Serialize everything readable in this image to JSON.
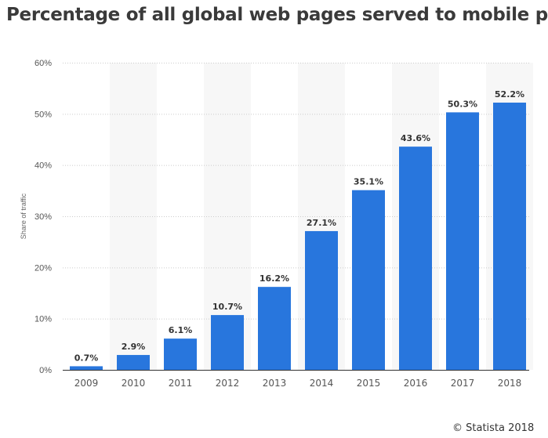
{
  "title": "Percentage of all global web pages served to mobile p",
  "credit": "© Statista 2018",
  "chart_data": {
    "type": "bar",
    "title": "Percentage of all global web pages served to mobile p",
    "ylabel": "Share of traffic",
    "xlabel": "",
    "categories": [
      "2009",
      "2010",
      "2011",
      "2012",
      "2013",
      "2014",
      "2015",
      "2016",
      "2017",
      "2018"
    ],
    "values": [
      0.7,
      2.9,
      6.1,
      10.7,
      16.2,
      27.1,
      35.1,
      43.6,
      50.3,
      52.2
    ],
    "data_labels": [
      "0.7%",
      "2.9%",
      "6.1%",
      "10.7%",
      "16.2%",
      "27.1%",
      "35.1%",
      "43.6%",
      "50.3%",
      "52.2%"
    ],
    "ylim": [
      0,
      60
    ],
    "yticks": [
      "0%",
      "10%",
      "20%",
      "30%",
      "40%",
      "50%",
      "60%"
    ],
    "grid": true,
    "bar_color": "#2876dd"
  }
}
